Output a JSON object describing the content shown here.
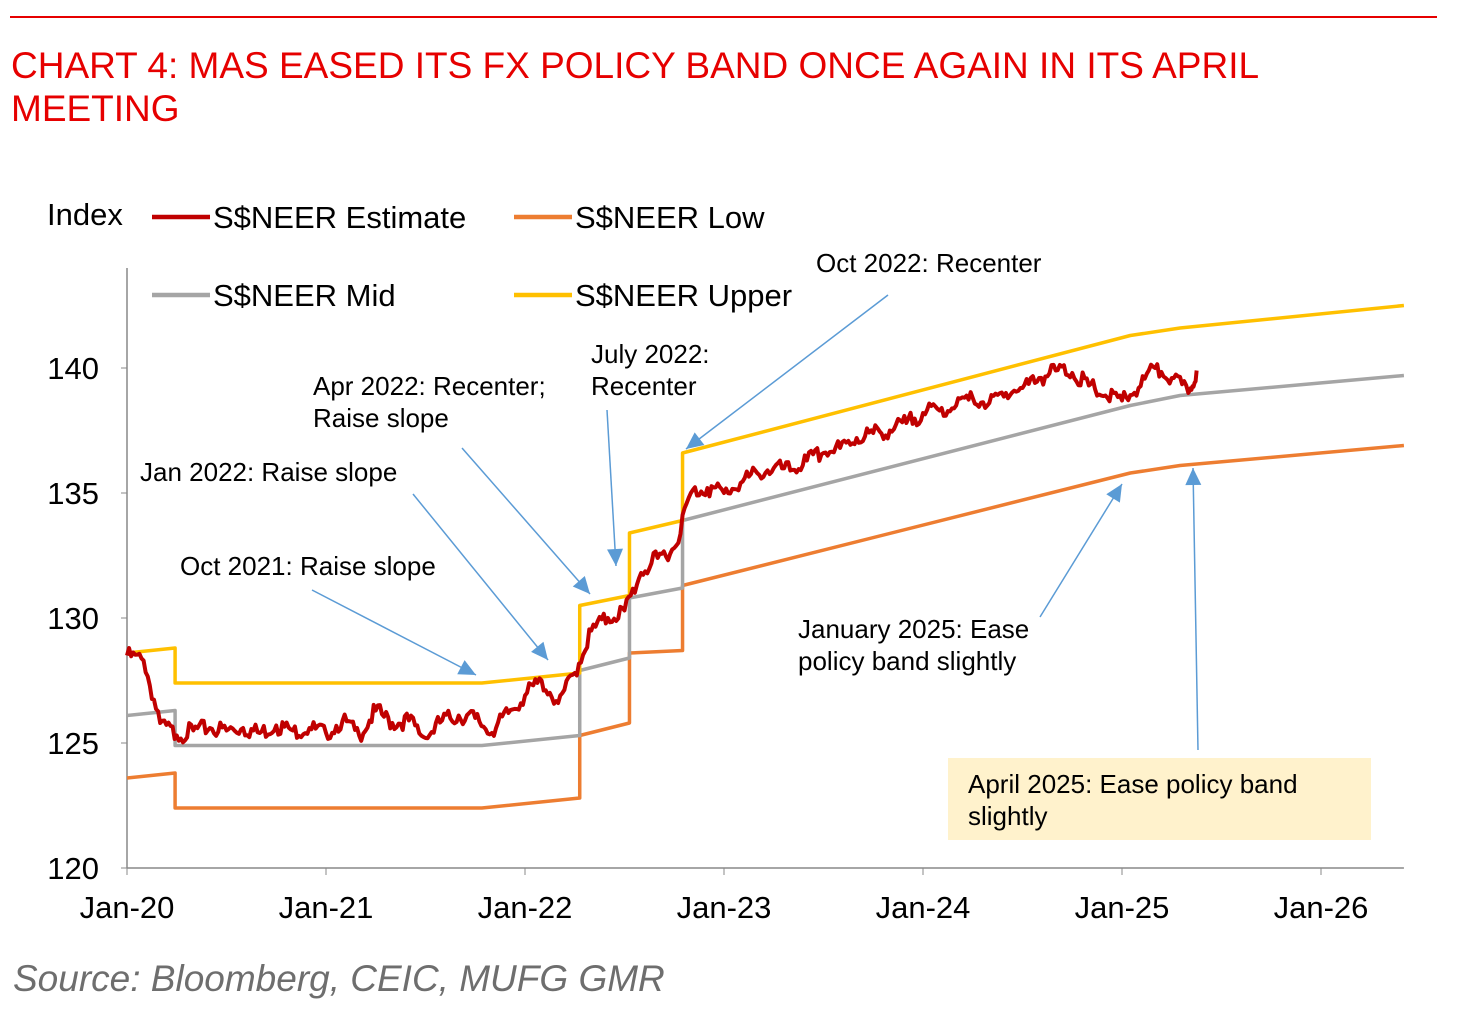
{
  "title": "CHART 4: MAS EASED ITS FX POLICY BAND ONCE AGAIN IN ITS APRIL MEETING",
  "source": "Source: Bloomberg, CEIC, MUFG GMR",
  "chart_data": {
    "type": "line",
    "title": "CHART 4: MAS EASED ITS FX POLICY BAND ONCE AGAIN IN ITS APRIL MEETING",
    "ylabel": "Index",
    "xlabel": "",
    "x_unit": "months since Jan-20",
    "xlim": [
      0,
      77
    ],
    "ylim": [
      120,
      145
    ],
    "yticks": [
      120,
      125,
      130,
      135,
      140
    ],
    "xtick_labels": [
      "Jan-20",
      "Jan-21",
      "Jan-22",
      "Jan-23",
      "Jan-24",
      "Jan-25",
      "Jan-26"
    ],
    "xtick_months": [
      0,
      12,
      24,
      36,
      48,
      60,
      72
    ],
    "legend_position": "top-left",
    "series": [
      {
        "name": "S$NEER Estimate",
        "color": "#c00000",
        "points": [
          [
            0,
            128.5
          ],
          [
            1,
            128.3
          ],
          [
            2,
            125.8
          ],
          [
            3,
            125.3
          ],
          [
            4,
            125.5
          ],
          [
            5,
            125.6
          ],
          [
            6,
            125.5
          ],
          [
            7,
            125.6
          ],
          [
            8,
            125.4
          ],
          [
            9,
            125.7
          ],
          [
            10,
            125.5
          ],
          [
            11,
            125.6
          ],
          [
            12,
            125.4
          ],
          [
            13,
            125.9
          ],
          [
            14,
            125.3
          ],
          [
            15,
            126.3
          ],
          [
            16,
            125.8
          ],
          [
            17,
            125.9
          ],
          [
            18,
            125.2
          ],
          [
            19,
            125.9
          ],
          [
            20,
            126.1
          ],
          [
            21,
            126.0
          ],
          [
            22,
            125.4
          ],
          [
            23,
            126.2
          ],
          [
            24,
            126.9
          ],
          [
            25,
            127.5
          ],
          [
            26,
            126.6
          ],
          [
            27,
            127.8
          ],
          [
            28,
            129.5
          ],
          [
            29,
            130.0
          ],
          [
            30,
            130.3
          ],
          [
            31,
            131.8
          ],
          [
            32,
            132.4
          ],
          [
            33,
            132.8
          ],
          [
            34,
            135.0
          ],
          [
            35,
            135.2
          ],
          [
            36,
            135.0
          ],
          [
            37,
            135.4
          ],
          [
            38,
            135.8
          ],
          [
            39,
            136.0
          ],
          [
            40,
            135.9
          ],
          [
            41,
            136.3
          ],
          [
            42,
            136.6
          ],
          [
            43,
            136.8
          ],
          [
            44,
            137.2
          ],
          [
            45,
            137.4
          ],
          [
            46,
            137.5
          ],
          [
            47,
            137.8
          ],
          [
            48,
            138.2
          ],
          [
            49,
            138.3
          ],
          [
            50,
            138.5
          ],
          [
            51,
            138.8
          ],
          [
            52,
            138.6
          ],
          [
            53,
            139.0
          ],
          [
            54,
            139.2
          ],
          [
            55,
            139.6
          ],
          [
            56,
            139.9
          ],
          [
            57,
            139.8
          ],
          [
            58,
            139.3
          ],
          [
            59,
            138.9
          ],
          [
            60,
            138.7
          ],
          [
            61,
            139.2
          ],
          [
            62,
            140.0
          ],
          [
            63,
            139.6
          ],
          [
            64,
            139.0
          ],
          [
            64.5,
            139.9
          ]
        ]
      },
      {
        "name": "S$NEER Low",
        "color": "#ed7d31",
        "points": [
          [
            0,
            123.6
          ],
          [
            2.9,
            123.8
          ],
          [
            2.9,
            122.4
          ],
          [
            21.4,
            122.4
          ],
          [
            27.3,
            122.8
          ],
          [
            27.3,
            125.3
          ],
          [
            30.3,
            125.8
          ],
          [
            30.3,
            128.6
          ],
          [
            33.5,
            128.7
          ],
          [
            33.5,
            131.3
          ],
          [
            60.5,
            135.8
          ],
          [
            63.5,
            136.1
          ],
          [
            77,
            136.9
          ]
        ]
      },
      {
        "name": "S$NEER Mid",
        "color": "#a5a5a5",
        "points": [
          [
            0,
            126.1
          ],
          [
            2.9,
            126.3
          ],
          [
            2.9,
            124.9
          ],
          [
            21.4,
            124.9
          ],
          [
            27.3,
            125.3
          ],
          [
            27.3,
            127.9
          ],
          [
            30.3,
            128.4
          ],
          [
            30.3,
            130.8
          ],
          [
            33.5,
            131.2
          ],
          [
            33.5,
            133.9
          ],
          [
            60.5,
            138.5
          ],
          [
            63.5,
            138.9
          ],
          [
            77,
            139.7
          ]
        ]
      },
      {
        "name": "S$NEER Upper",
        "color": "#ffc000",
        "points": [
          [
            0,
            128.6
          ],
          [
            2.9,
            128.8
          ],
          [
            2.9,
            127.4
          ],
          [
            21.4,
            127.4
          ],
          [
            27.3,
            127.8
          ],
          [
            27.3,
            130.5
          ],
          [
            30.3,
            130.9
          ],
          [
            30.3,
            133.4
          ],
          [
            33.5,
            133.9
          ],
          [
            33.5,
            136.6
          ],
          [
            60.5,
            141.3
          ],
          [
            63.5,
            141.6
          ],
          [
            77,
            142.5
          ]
        ]
      }
    ],
    "annotations": [
      {
        "id": "oct21",
        "text": [
          "Oct 2021: Raise slope"
        ]
      },
      {
        "id": "jan22",
        "text": [
          "Jan 2022: Raise slope"
        ]
      },
      {
        "id": "apr22",
        "text": [
          "Apr 2022: Recenter;",
          "Raise slope"
        ]
      },
      {
        "id": "jul22",
        "text": [
          "July 2022:",
          "Recenter"
        ]
      },
      {
        "id": "oct22",
        "text": [
          "Oct 2022: Recenter"
        ]
      },
      {
        "id": "jan25",
        "text": [
          "January 2025: Ease",
          "policy band slightly"
        ]
      },
      {
        "id": "apr25",
        "text": [
          "April 2025: Ease policy band",
          "slightly"
        ]
      }
    ]
  }
}
